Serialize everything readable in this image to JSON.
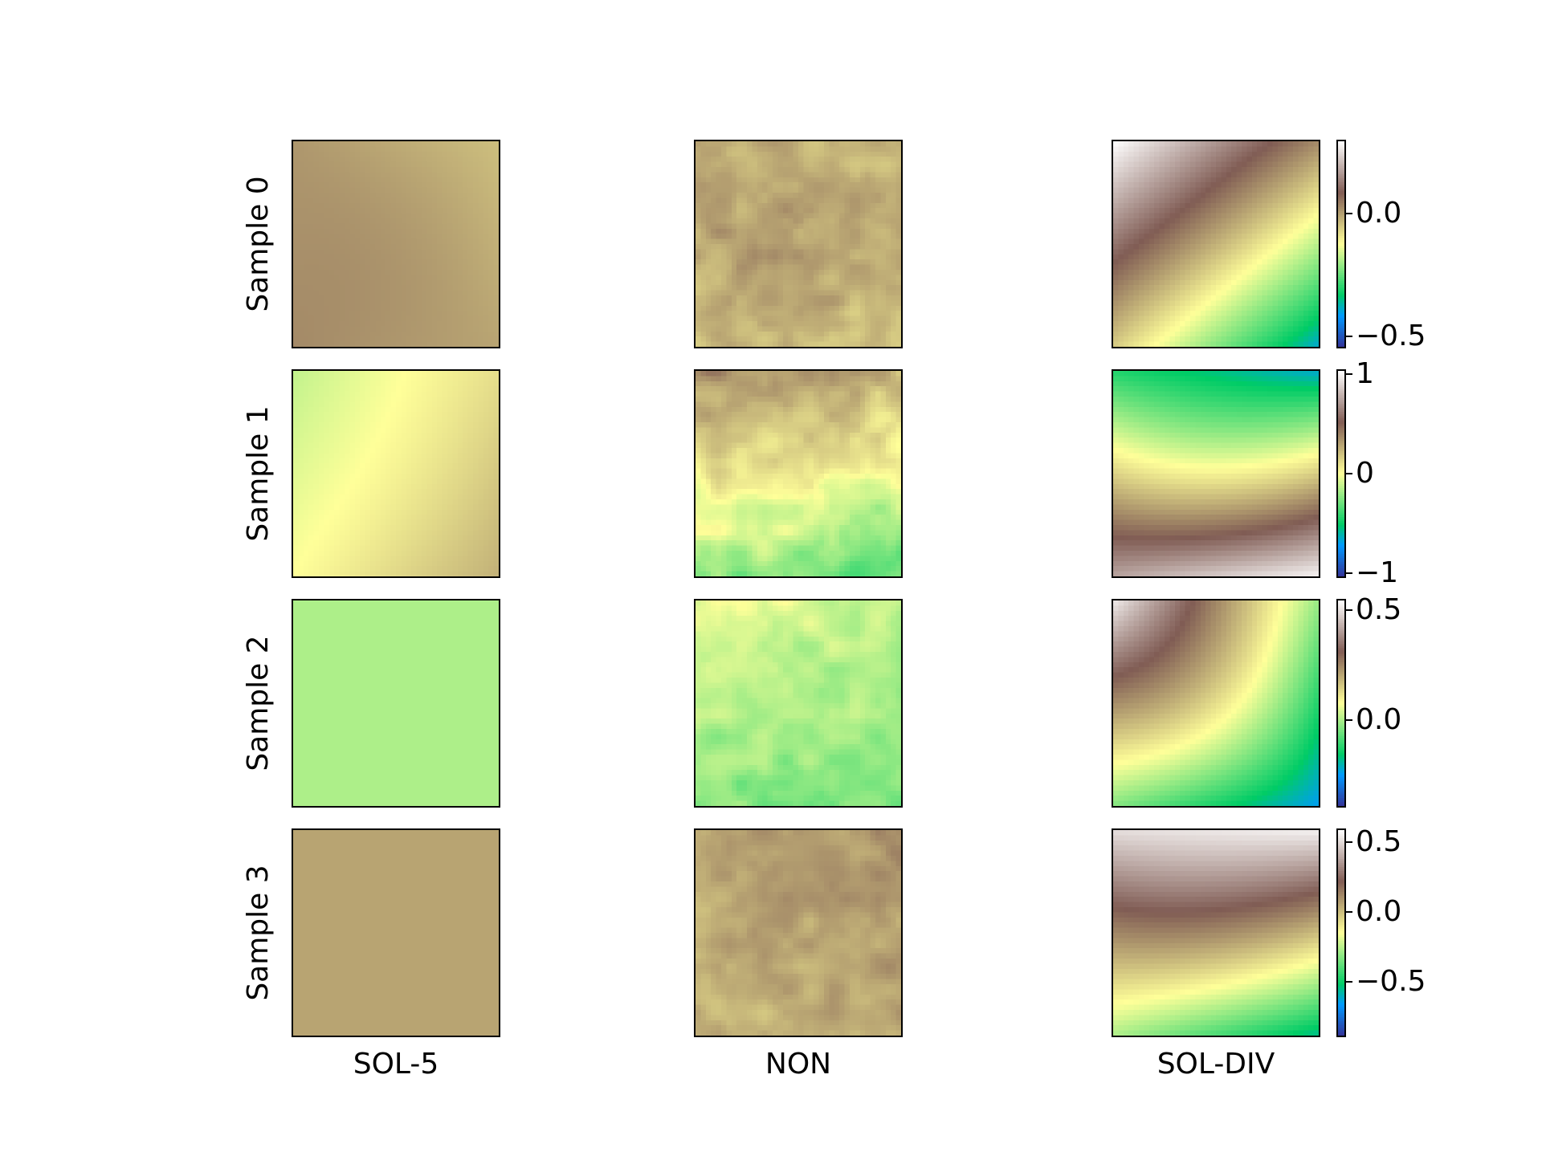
{
  "chart_data": {
    "type": "heatmap",
    "colormap": "terrain",
    "columns": [
      "SOL-5",
      "NON",
      "SOL-DIV"
    ],
    "rows": [
      "Sample 0",
      "Sample 1",
      "Sample 2",
      "Sample 3"
    ],
    "colorbars": [
      {
        "row": 0,
        "vmin": -0.55,
        "vmax": 0.3,
        "ticks": [
          {
            "value": 0.0,
            "label": "0.0"
          },
          {
            "value": -0.5,
            "label": "−0.5"
          }
        ]
      },
      {
        "row": 1,
        "vmin": -1.05,
        "vmax": 1.05,
        "ticks": [
          {
            "value": 1,
            "label": "1"
          },
          {
            "value": 0,
            "label": "0"
          },
          {
            "value": -1,
            "label": "−1"
          }
        ]
      },
      {
        "row": 2,
        "vmin": -0.4,
        "vmax": 0.55,
        "ticks": [
          {
            "value": 0.5,
            "label": "0.5"
          },
          {
            "value": 0.0,
            "label": "0.0"
          }
        ]
      },
      {
        "row": 3,
        "vmin": -0.9,
        "vmax": 0.6,
        "ticks": [
          {
            "value": 0.5,
            "label": "0.5"
          },
          {
            "value": 0.0,
            "label": "0.0"
          },
          {
            "value": -0.5,
            "label": "−0.5"
          }
        ]
      }
    ],
    "fields": [
      [
        {
          "kind": "smooth",
          "tl": 0.66,
          "tr": 0.6,
          "bl": 0.68,
          "br": 0.64,
          "c": 0.66
        },
        {
          "kind": "noisy",
          "tl": 0.64,
          "tr": 0.6,
          "bl": 0.6,
          "br": 0.6,
          "c": 0.65,
          "noise": 0.035
        },
        {
          "kind": "smooth",
          "tl": 1.0,
          "tr": 0.68,
          "bl": 0.58,
          "br": 0.18,
          "c": 0.62
        }
      ],
      [
        {
          "kind": "smooth",
          "tl": 0.44,
          "tr": 0.55,
          "bl": 0.5,
          "br": 0.62,
          "c": 0.52
        },
        {
          "kind": "noisy",
          "tl": 0.68,
          "tr": 0.62,
          "bl": 0.4,
          "br": 0.34,
          "c": 0.52,
          "noise": 0.04
        },
        {
          "kind": "smooth",
          "tl": 0.28,
          "tr": 0.18,
          "bl": 0.86,
          "br": 0.98,
          "c": 0.52
        }
      ],
      [
        {
          "kind": "smooth",
          "tl": 0.42,
          "tr": 0.42,
          "bl": 0.42,
          "br": 0.42,
          "c": 0.42
        },
        {
          "kind": "noisy",
          "tl": 0.48,
          "tr": 0.44,
          "bl": 0.38,
          "br": 0.38,
          "c": 0.42,
          "noise": 0.03
        },
        {
          "kind": "smooth",
          "tl": 0.97,
          "tr": 0.4,
          "bl": 0.38,
          "br": 0.16,
          "c": 0.55
        }
      ],
      [
        {
          "kind": "smooth",
          "tl": 0.64,
          "tr": 0.64,
          "bl": 0.64,
          "br": 0.64,
          "c": 0.64
        },
        {
          "kind": "noisy",
          "tl": 0.65,
          "tr": 0.67,
          "bl": 0.61,
          "br": 0.63,
          "c": 0.64,
          "noise": 0.03
        },
        {
          "kind": "smooth",
          "tl": 0.95,
          "tr": 0.98,
          "bl": 0.42,
          "br": 0.22,
          "c": 0.68
        }
      ]
    ]
  }
}
